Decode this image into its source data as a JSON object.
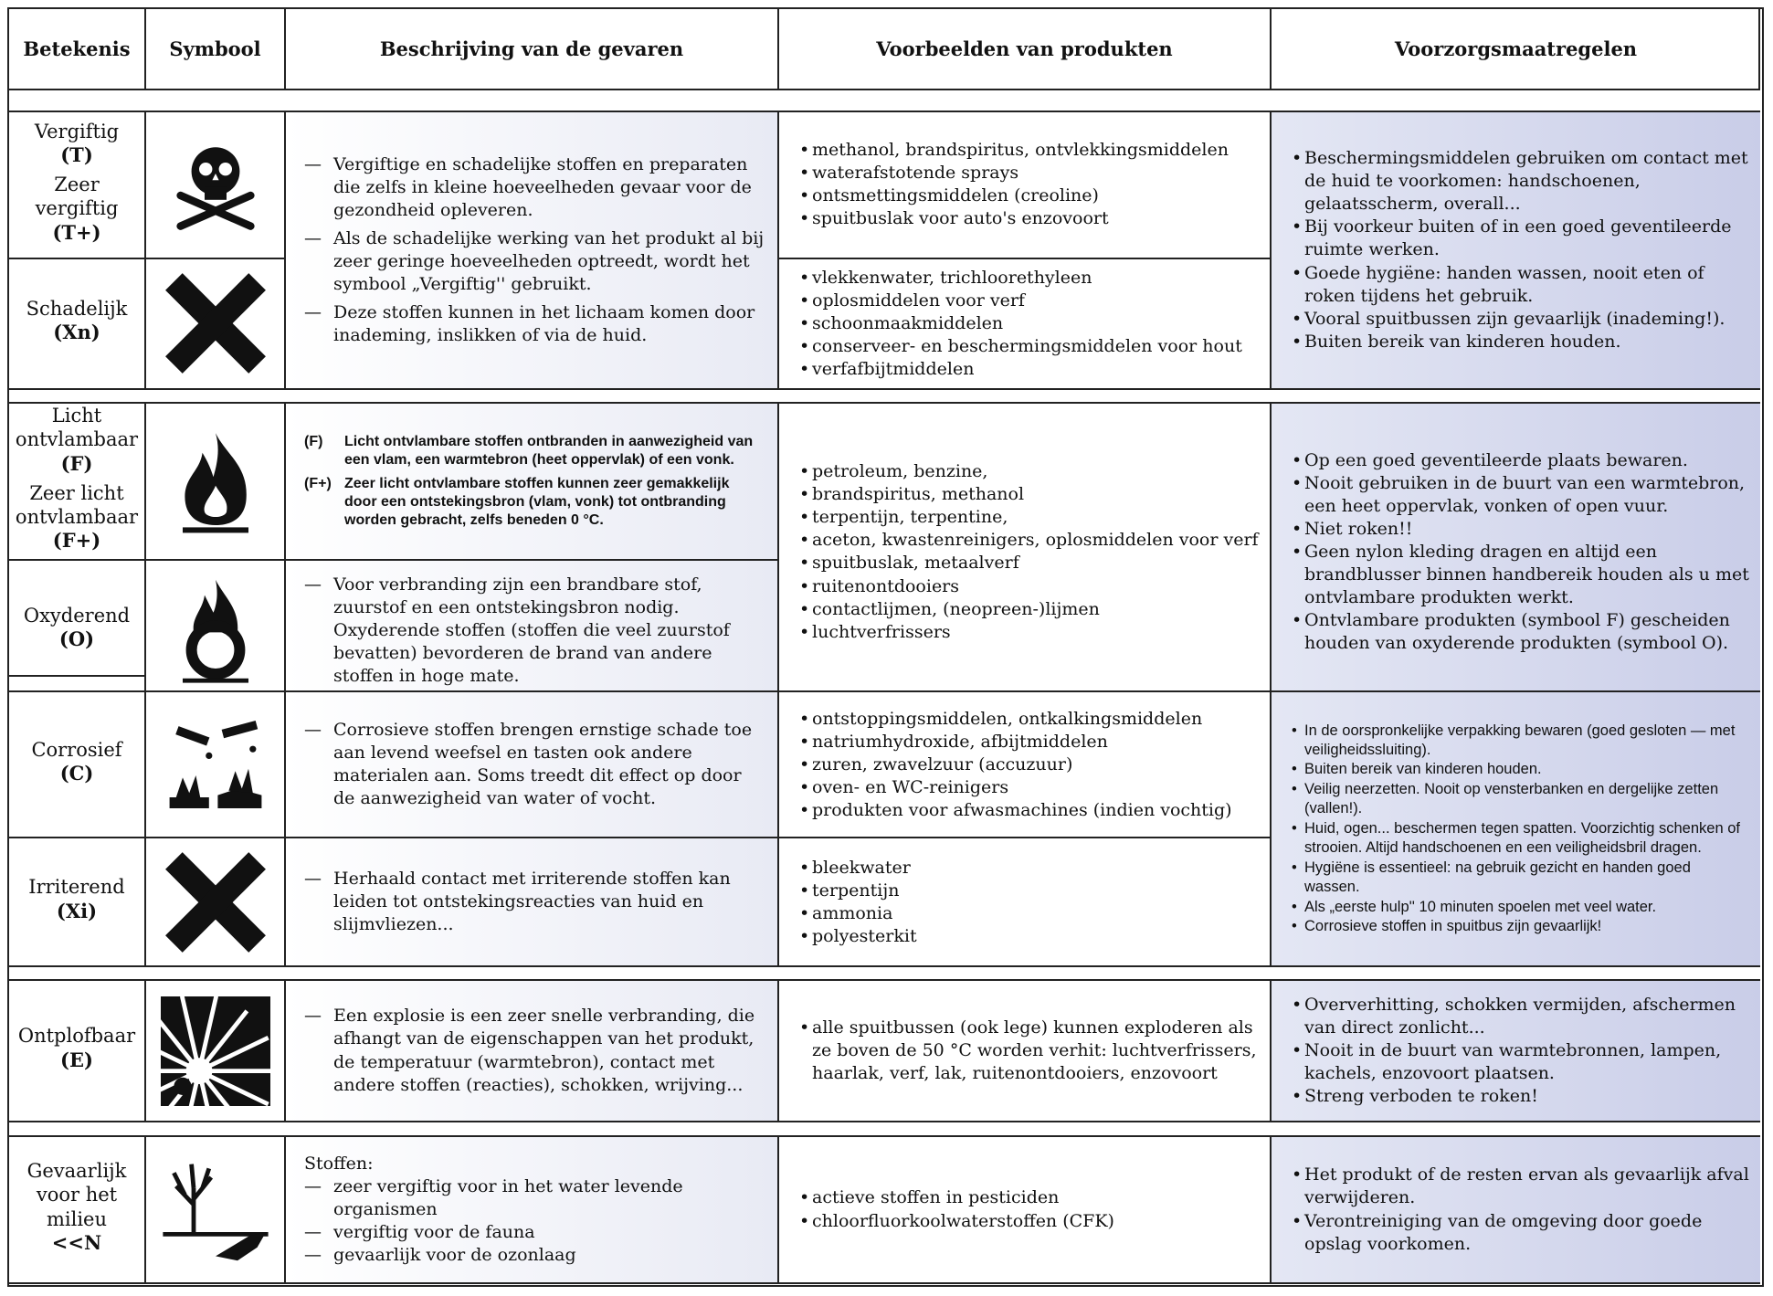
{
  "header": [
    "Betekenis",
    "Symbool",
    "Beschrijving van de gevaren",
    "Voorbeelden van produkten",
    "Voorzorgsmaatregelen"
  ],
  "groups": [
    {
      "rows": [
        [
          {
            "name": "Vergiftig",
            "code": "(T)"
          },
          {
            "name": "Zeer vergiftig",
            "code": "(T+)"
          }
        ],
        [
          {
            "name": "Schadelijk",
            "code": "(Xn)"
          }
        ]
      ],
      "description": [
        [
          "Vergiftige en schadelijke stoffen en preparaten die zelfs in kleine hoeveelheden gevaar voor de gezondheid opleveren.",
          "Als de schadelijke werking van het produkt al bij zeer geringe hoeveelheden optreedt, wordt het symbool „Vergiftig'' gebruikt.",
          "Deze stoffen kunnen in het lichaam komen door inademing, inslikken of via de huid."
        ]
      ],
      "examples": [
        [
          "methanol, brandspiritus, ontvlekkingsmiddelen",
          "waterafstotende sprays",
          "ontsmettingsmiddelen (creoline)",
          "spuitbuslak voor auto's enzovoort"
        ],
        [
          "vlekkenwater, trichloorethyleen",
          "oplosmiddelen voor verf",
          "schoonmaakmiddelen",
          "conserveer- en beschermingsmiddelen voor hout",
          "verfafbijtmiddelen"
        ]
      ],
      "precautions": [
        [
          "Beschermingsmiddelen gebruiken om contact met de huid te voorkomen: handschoenen, gelaatsscherm, overall...",
          "Bij voorkeur buiten of in een goed geventileerde ruimte werken.",
          "Goede hygiëne: handen wassen, nooit eten of roken tijdens het gebruik.",
          "Vooral spuitbussen zijn gevaarlijk (inademing!).",
          "Buiten bereik van kinderen houden."
        ]
      ]
    },
    {
      "rows": [
        [
          {
            "name": "Licht ontvlambaar",
            "code": "(F)"
          },
          {
            "name": "Zeer licht ontvlambaar",
            "code": "(F+)"
          }
        ],
        [
          {
            "name": "Oxyderend",
            "code": "(O)"
          }
        ]
      ],
      "description": [
        [
          {
            "code": "(F)",
            "text": "Licht ontvlambare stoffen ontbranden in aanwezigheid van een vlam, een warmtebron (heet oppervlak) of een vonk."
          },
          {
            "code": "(F+)",
            "text": "Zeer licht ontvlambare stoffen kunnen zeer gemakkelijk door een ontstekingsbron (vlam, vonk) tot ontbranding worden gebracht, zelfs beneden 0 °C."
          }
        ],
        [
          "Voor verbranding zijn een brandbare stof, zuurstof en een ontstekingsbron nodig. Oxyderende stoffen (stoffen die veel zuurstof bevatten) bevorderen de brand van andere stoffen in hoge mate."
        ]
      ],
      "examples": [
        [
          "petroleum, benzine,",
          "brandspiritus, methanol",
          "terpentijn, terpentine,",
          "aceton, kwastenreinigers, oplosmiddelen voor verf",
          "spuitbuslak, metaalverf",
          "ruitenontdooiers",
          "contactlijmen, (neopreen-)lijmen",
          "luchtverfrissers"
        ]
      ],
      "precautions": [
        [
          "Op een goed geventileerde plaats bewaren.",
          "Nooit gebruiken in de buurt van een warmtebron, een heet oppervlak, vonken of open vuur.",
          "Niet roken!!",
          "Geen nylon kleding dragen en altijd een brandblusser binnen handbereik houden als u met ontvlambare produkten werkt.",
          "Ontvlambare produkten (symbool F) gescheiden houden van oxyderende produkten (symbool O)."
        ]
      ]
    },
    {
      "rows": [
        [
          {
            "name": "Corrosief",
            "code": "(C)"
          }
        ],
        [
          {
            "name": "Irriterend",
            "code": "(Xi)"
          }
        ]
      ],
      "description": [
        [
          "Corrosieve stoffen brengen ernstige schade toe aan levend weefsel en tasten ook andere materialen aan. Soms treedt dit effect op door de aanwezigheid van water of vocht."
        ],
        [
          "Herhaald contact met irriterende stoffen kan leiden tot ontstekingsreacties van huid en slijmvliezen..."
        ]
      ],
      "examples": [
        [
          "ontstoppingsmiddelen, ontkalkingsmiddelen",
          "natriumhydroxide, afbijtmiddelen",
          "zuren, zwavelzuur (accuzuur)",
          "oven- en WC-reinigers",
          "produkten voor afwasmachines (indien vochtig)"
        ],
        [
          "bleekwater",
          "terpentijn",
          "ammonia",
          "polyesterkit"
        ]
      ],
      "precautions": [
        [
          "In de oorspronkelijke verpakking bewaren (goed gesloten — met veiligheidssluiting).",
          "Buiten bereik van kinderen houden.",
          "Veilig neerzetten. Nooit op vensterbanken en dergelijke zetten (vallen!).",
          "Huid, ogen... beschermen tegen spatten. Voorzichtig schenken of strooien. Altijd handschoenen en een veiligheidsbril dragen.",
          "Hygiëne is essentieel: na gebruik gezicht en handen goed wassen.",
          "Als „eerste hulp'' 10 minuten spoelen met veel water.",
          "Corrosieve stoffen in spuitbus zijn gevaarlijk!"
        ]
      ]
    },
    {
      "rows": [
        [
          {
            "name": "Ontplofbaar",
            "code": "(E)"
          }
        ]
      ],
      "description": [
        [
          "Een explosie is een zeer snelle verbranding, die afhangt van de eigenschappen van het produkt, de temperatuur (warmtebron), contact met andere stoffen (reacties), schokken, wrijving..."
        ]
      ],
      "examples": [
        [
          "alle spuitbussen (ook lege) kunnen exploderen als ze boven de 50 °C worden verhit: luchtverfrissers, haarlak, verf, lak, ruitenontdooiers, enzovoort"
        ]
      ],
      "precautions": [
        [
          "Oververhitting, schokken vermijden, afschermen van direct zonlicht...",
          "Nooit in de buurt van warmtebronnen, lampen, kachels, enzovoort plaatsen.",
          "Streng verboden te roken!"
        ]
      ]
    },
    {
      "rows": [
        [
          {
            "name": "Gevaarlijk voor het milieu",
            "code": "<<N"
          }
        ]
      ],
      "description": [
        [
          {
            "intro": "Stoffen:"
          },
          "zeer vergiftig voor in het water levende organismen",
          "vergiftig voor de fauna",
          "gevaarlijk voor de ozonlaag"
        ]
      ],
      "examples": [
        [
          "actieve stoffen in pesticiden",
          "chloorfluorkoolwaterstoffen (CFK)"
        ]
      ],
      "precautions": [
        [
          "Het produkt of de resten ervan als gevaarlijk afval verwijderen.",
          "Verontreiniging van de omgeving door goede opslag voorkomen."
        ]
      ]
    }
  ]
}
